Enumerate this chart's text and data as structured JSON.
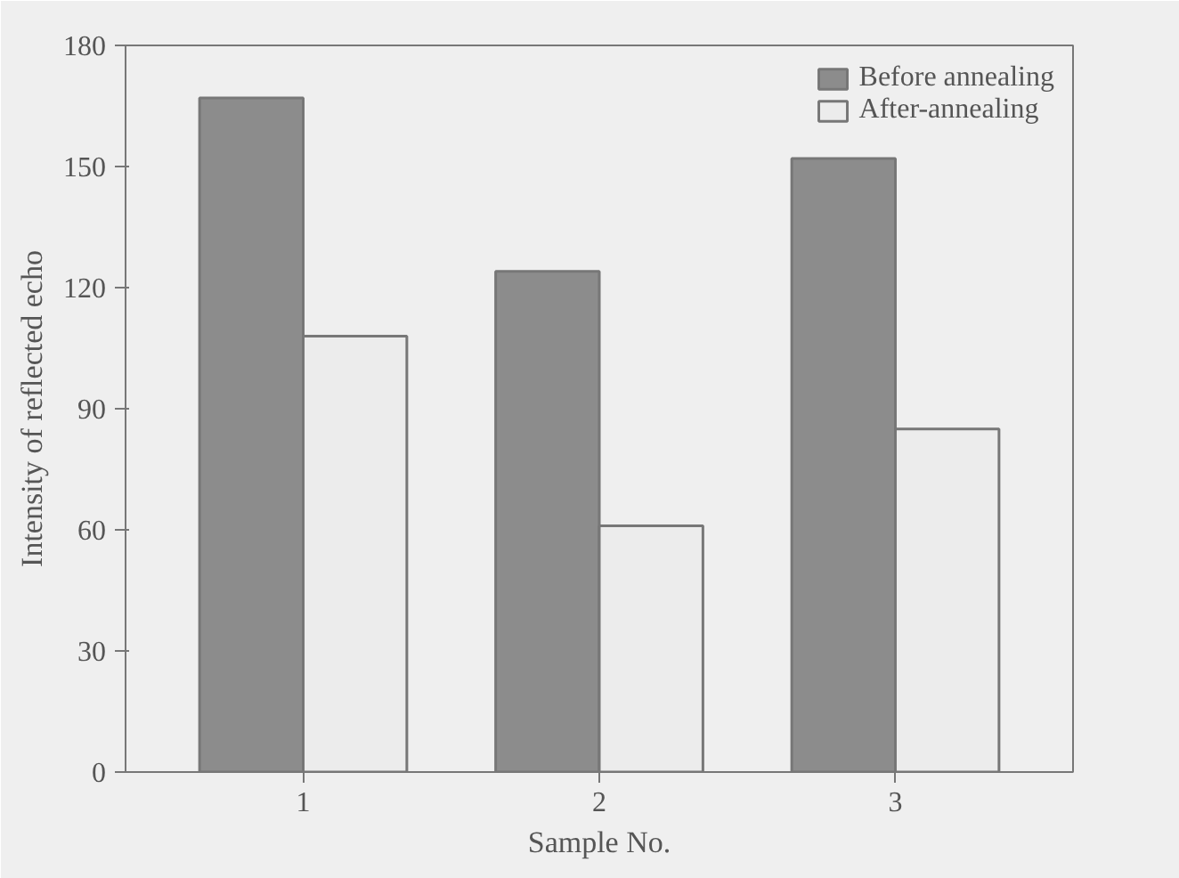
{
  "chart_data": {
    "type": "bar",
    "xlabel": "Sample No.",
    "ylabel": "Intensity of reflected echo",
    "categories": [
      "1",
      "2",
      "3"
    ],
    "series": [
      {
        "name": "Before annealing",
        "color": "#8c8c8c",
        "values": [
          167,
          124,
          152
        ]
      },
      {
        "name": "After-annealing",
        "color": "#ececec",
        "values": [
          108,
          61,
          85
        ]
      }
    ],
    "ylim": [
      0,
      180
    ],
    "yticks": [
      0,
      30,
      60,
      90,
      120,
      150,
      180
    ],
    "grid": false,
    "legend": "top right"
  }
}
